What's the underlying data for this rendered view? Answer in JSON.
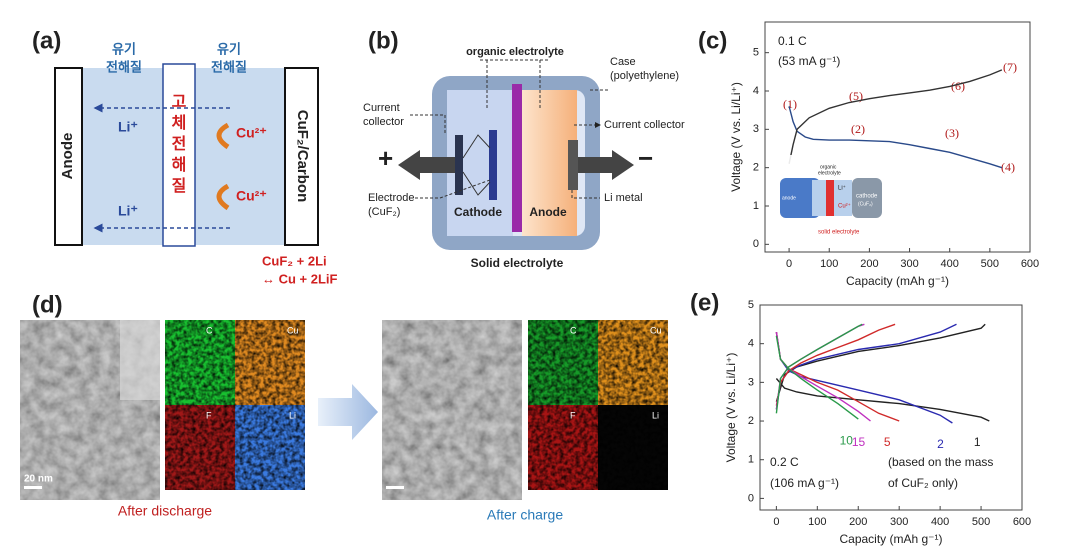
{
  "panel_labels": [
    "(a)",
    "(b)",
    "(c)",
    "(d)",
    "(e)"
  ],
  "panel_a": {
    "organic_left": [
      "유기",
      "전해질"
    ],
    "organic_right": [
      "유기",
      "전해질"
    ],
    "anode": "Anode",
    "cathode": "CuF₂/Carbon",
    "solid": [
      "고",
      "체",
      "전",
      "해",
      "질"
    ],
    "li": [
      "Li⁺",
      "Li⁺"
    ],
    "cu": [
      "Cu²⁺",
      "Cu²⁺"
    ],
    "reaction": [
      "CuF₂ + 2Li",
      "↔ Cu + 2LiF"
    ]
  },
  "panel_b": {
    "organic": "organic electrolyte",
    "case": [
      "Case",
      "(polyethylene)"
    ],
    "collector_left": [
      "Current",
      "collector"
    ],
    "collector_right": "Current collector",
    "electrode": [
      "Electrode",
      "(CuF₂)"
    ],
    "cathode": "Cathode",
    "anode": "Anode",
    "li_metal": "Li metal",
    "solid": "Solid electrolyte",
    "plus": "+",
    "minus": "−"
  },
  "panel_d": {
    "scale_bar": "20 nm",
    "maps": [
      "C",
      "Cu",
      "F",
      "Li",
      "C",
      "Cu",
      "F",
      "Li"
    ],
    "captions": [
      "After discharge",
      "After charge"
    ]
  },
  "chart_data": [
    {
      "type": "line",
      "xlabel": "Capacity (mAh g⁻¹)",
      "ylabel": "Voltage (V vs. Li/Li⁺)",
      "xlim": [
        -60,
        600
      ],
      "xticks": [
        0,
        100,
        200,
        300,
        400,
        500,
        600
      ],
      "ylim": [
        -0.2,
        5.8
      ],
      "yticks": [
        0,
        1,
        2,
        3,
        4,
        5
      ],
      "annotations": [
        "0.1 C",
        "(53 mA g⁻¹)"
      ],
      "point_labels": [
        "(1)",
        "(2)",
        "(3)",
        "(4)",
        "(5)",
        "(6)",
        "(7)"
      ],
      "inset": [
        "anode",
        "organic",
        "electrolyte",
        "cathode",
        "(CuF₂)",
        "Li⁺",
        "Cu²⁺",
        "solid electrolyte"
      ],
      "series": [
        {
          "color": "#2a4a8a",
          "x": [
            0,
            10,
            20,
            40,
            60,
            100,
            150,
            200,
            250,
            300,
            350,
            400,
            450,
            500,
            530
          ],
          "values": [
            3.6,
            3.2,
            2.95,
            2.8,
            2.74,
            2.72,
            2.72,
            2.7,
            2.68,
            2.6,
            2.5,
            2.4,
            2.25,
            2.1,
            2.0
          ]
        },
        {
          "color": "#333333",
          "x": [
            0,
            10,
            20,
            50,
            100,
            150,
            200,
            250,
            300,
            350,
            400,
            450,
            500,
            530
          ],
          "values": [
            2.1,
            2.6,
            3.0,
            3.3,
            3.55,
            3.7,
            3.8,
            3.88,
            3.95,
            4.02,
            4.12,
            4.25,
            4.42,
            4.55
          ]
        }
      ]
    },
    {
      "type": "line",
      "xlabel": "Capacity (mAh g⁻¹)",
      "ylabel": "Voltage (V vs. Li/Li⁺)",
      "xlim": [
        -40,
        600
      ],
      "xticks": [
        0,
        100,
        200,
        300,
        400,
        500,
        600
      ],
      "ylim": [
        -0.3,
        5
      ],
      "yticks": [
        0,
        1,
        2,
        3,
        4,
        5
      ],
      "annotations": [
        "0.2 C",
        "(106 mA g⁻¹)",
        "(based on the mass",
        "of CuF₂ only)"
      ],
      "series": [
        {
          "name": "1",
          "color": "#222222",
          "x": [
            0,
            20,
            50,
            100,
            200,
            300,
            400,
            500,
            520
          ],
          "values": [
            3.1,
            2.85,
            2.75,
            2.65,
            2.55,
            2.45,
            2.3,
            2.1,
            2.0
          ]
        },
        {
          "color": "#222222",
          "x": [
            0,
            20,
            50,
            100,
            200,
            300,
            400,
            500,
            510
          ],
          "values": [
            2.5,
            3.2,
            3.4,
            3.55,
            3.8,
            3.95,
            4.15,
            4.4,
            4.5
          ]
        },
        {
          "name": "2",
          "color": "#2a2ab0",
          "x": [
            0,
            10,
            30,
            60,
            100,
            200,
            300,
            400,
            430
          ],
          "values": [
            4.3,
            3.6,
            3.3,
            3.15,
            3.05,
            2.8,
            2.55,
            2.15,
            1.95
          ]
        },
        {
          "color": "#2a2ab0",
          "x": [
            0,
            10,
            30,
            60,
            100,
            200,
            300,
            400,
            440
          ],
          "values": [
            2.3,
            3.0,
            3.3,
            3.45,
            3.6,
            3.85,
            4.0,
            4.3,
            4.5
          ]
        },
        {
          "name": "5",
          "color": "#d02a2a",
          "x": [
            0,
            10,
            30,
            60,
            100,
            150,
            200,
            250,
            300
          ],
          "values": [
            4.3,
            3.6,
            3.35,
            3.2,
            3.0,
            2.8,
            2.5,
            2.2,
            2.0
          ]
        },
        {
          "color": "#d02a2a",
          "x": [
            0,
            10,
            30,
            60,
            100,
            150,
            200,
            250,
            290
          ],
          "values": [
            2.4,
            3.0,
            3.3,
            3.5,
            3.7,
            3.9,
            4.1,
            4.35,
            4.5
          ]
        },
        {
          "name": "15",
          "color": "#c030c0",
          "x": [
            0,
            10,
            30,
            60,
            100,
            150,
            200,
            230
          ],
          "values": [
            4.3,
            3.6,
            3.35,
            3.15,
            2.9,
            2.6,
            2.25,
            2.0
          ]
        },
        {
          "color": "#c030c0",
          "x": [
            0,
            10,
            30,
            60,
            100,
            150,
            200,
            215
          ],
          "values": [
            2.3,
            3.1,
            3.4,
            3.6,
            3.85,
            4.15,
            4.45,
            4.5
          ]
        },
        {
          "name": "10",
          "color": "#2a9a4a",
          "x": [
            0,
            10,
            30,
            60,
            100,
            150,
            200
          ],
          "values": [
            4.2,
            3.6,
            3.35,
            3.1,
            2.8,
            2.45,
            2.05
          ]
        },
        {
          "color": "#2a9a4a",
          "x": [
            0,
            10,
            30,
            60,
            100,
            150,
            200,
            210
          ],
          "values": [
            2.2,
            3.1,
            3.4,
            3.6,
            3.85,
            4.15,
            4.45,
            4.5
          ]
        }
      ]
    }
  ]
}
